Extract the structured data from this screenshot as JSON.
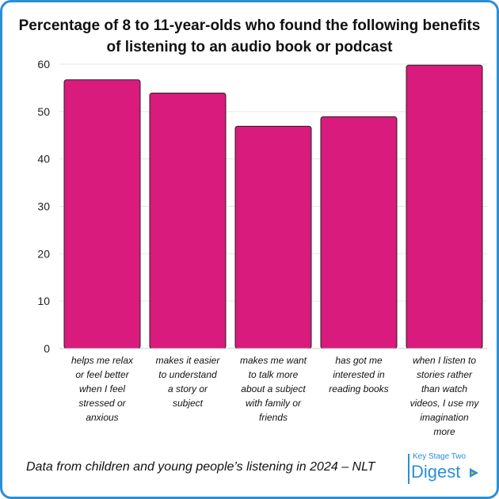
{
  "chart_data": {
    "type": "bar",
    "title": [
      "Percentage of 8 to 11-year-olds who found the following benefits",
      "of listening to an audio book or podcast"
    ],
    "categories": [
      [
        "helps me relax",
        "or feel better",
        "when I feel",
        "stressed or",
        "anxious"
      ],
      [
        "makes it easier",
        "to understand",
        "a story or",
        "subject"
      ],
      [
        "makes me want",
        "to talk more",
        "about a subject",
        "with family or",
        "friends"
      ],
      [
        "has got me",
        "interested in",
        "reading books"
      ],
      [
        "when I listen to",
        "stories rather",
        "than watch",
        "videos, I use my",
        "imagination",
        "more"
      ]
    ],
    "values": [
      56.7,
      53.9,
      46.9,
      48.9,
      59.8
    ],
    "ylim": [
      0,
      60
    ],
    "yticks": [
      0,
      10,
      20,
      30,
      40,
      50,
      60
    ],
    "grid": true,
    "bar_color": "#d81b7c",
    "gridline_color": "#e6e6e6"
  },
  "footer": {
    "source": "Data from children and young people’s listening in 2024 – NLT"
  },
  "logo": {
    "line1": "Key Stage Two",
    "line2": "Digest",
    "color": "#2a8fd6",
    "icon": "play-triangle-icon"
  }
}
